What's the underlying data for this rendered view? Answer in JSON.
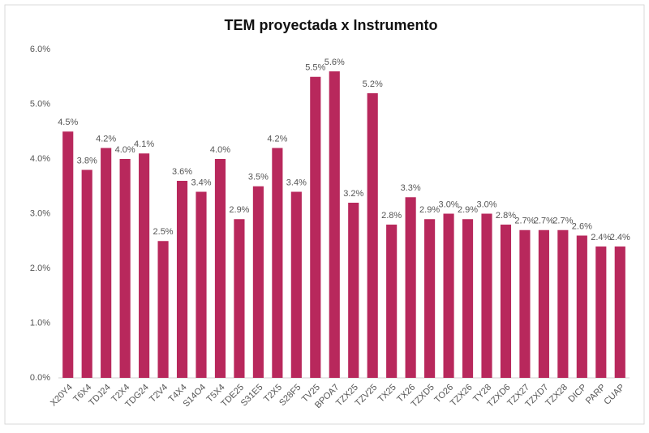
{
  "chart_data": {
    "type": "bar",
    "title": "TEM proyectada x Instrumento",
    "categories": [
      "X20Y4",
      "T6X4",
      "TDJ24",
      "T2X4",
      "TDG24",
      "T2V4",
      "T4X4",
      "S14O4",
      "T5X4",
      "TDE25",
      "S31E5",
      "T2X5",
      "S28F5",
      "TV25",
      "BPOA7",
      "TZX25",
      "TZV25",
      "TX25",
      "TX26",
      "TZXD5",
      "TO26",
      "TZX26",
      "TY28",
      "TZXD6",
      "TZX27",
      "TZXD7",
      "TZX28",
      "DICP",
      "PARP",
      "CUAP"
    ],
    "values": [
      4.5,
      3.8,
      4.2,
      4.0,
      4.1,
      2.5,
      3.6,
      3.4,
      4.0,
      2.9,
      3.5,
      4.2,
      3.4,
      5.5,
      5.6,
      3.2,
      5.2,
      2.8,
      3.3,
      2.9,
      3.0,
      2.9,
      3.0,
      2.8,
      2.7,
      2.7,
      2.7,
      2.6,
      2.4,
      2.4
    ],
    "value_labels": [
      "4.5%",
      "3.8%",
      "4.2%",
      "4.0%",
      "4.1%",
      "2.5%",
      "3.6%",
      "3.4%",
      "4.0%",
      "2.9%",
      "3.5%",
      "4.2%",
      "3.4%",
      "5.5%",
      "5.6%",
      "3.2%",
      "5.2%",
      "2.8%",
      "3.3%",
      "2.9%",
      "3.0%",
      "2.9%",
      "3.0%",
      "2.8%",
      "2.7%",
      "2.7%",
      "2.7%",
      "2.6%",
      "2.4%",
      "2.4%"
    ],
    "color": "#b8285c",
    "ylim": [
      0,
      6
    ],
    "yticks": [
      {
        "value": 0,
        "label": "0.0%"
      },
      {
        "value": 1,
        "label": "1.0%"
      },
      {
        "value": 2,
        "label": "2.0%"
      },
      {
        "value": 3,
        "label": "3.0%"
      },
      {
        "value": 4,
        "label": "4.0%"
      },
      {
        "value": 5,
        "label": "5.0%"
      },
      {
        "value": 6,
        "label": "6.0%"
      }
    ],
    "grid": false
  }
}
